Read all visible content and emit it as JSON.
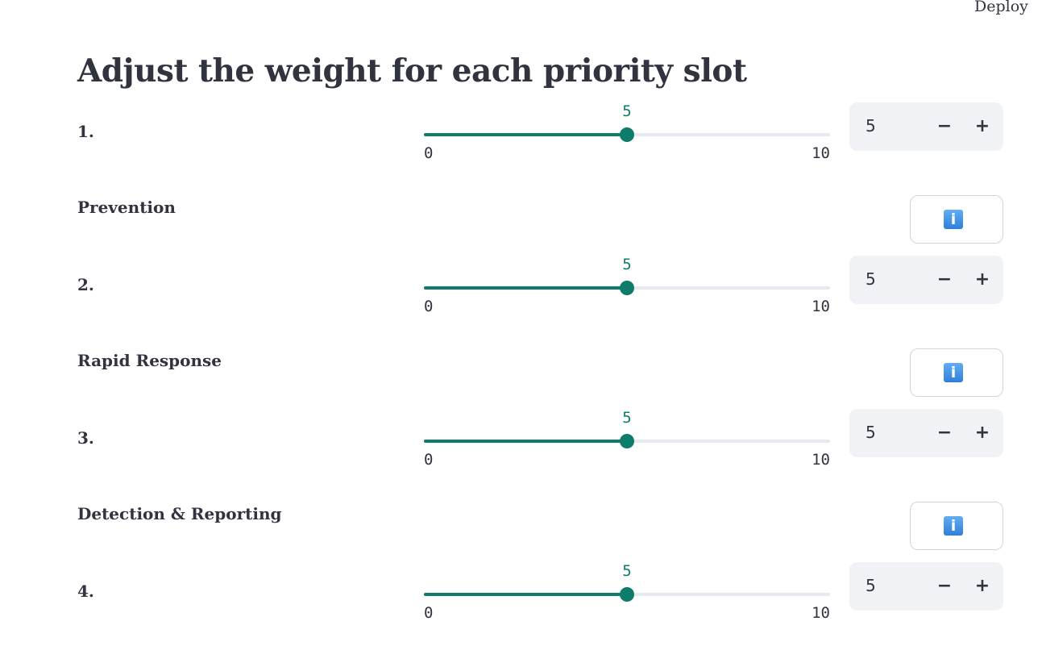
{
  "header": {
    "deploy_label": "Deploy"
  },
  "page": {
    "title": "Adjust the weight for each priority slot"
  },
  "slider_range": {
    "min": 0,
    "max": 10,
    "min_label": "0",
    "max_label": "10"
  },
  "slots": [
    {
      "label": "1.",
      "value": 5,
      "value_label": "5",
      "input_value": "5",
      "minus": "−",
      "plus": "+"
    },
    {
      "label": "2.",
      "value": 5,
      "value_label": "5",
      "input_value": "5",
      "minus": "−",
      "plus": "+"
    },
    {
      "label": "3.",
      "value": 5,
      "value_label": "5",
      "input_value": "5",
      "minus": "−",
      "plus": "+"
    },
    {
      "label": "4.",
      "value": 5,
      "value_label": "5",
      "input_value": "5",
      "minus": "−",
      "plus": "+"
    }
  ],
  "categories": [
    {
      "label": "Prevention",
      "icon": "info-icon",
      "icon_glyph": "i"
    },
    {
      "label": "Rapid Response",
      "icon": "info-icon",
      "icon_glyph": "i"
    },
    {
      "label": "Detection & Reporting",
      "icon": "info-icon",
      "icon_glyph": "i"
    }
  ],
  "colors": {
    "accent": "#0e7c6b",
    "track": "#e6e9ef",
    "input_bg": "#f0f2f6",
    "text": "#31333f"
  }
}
